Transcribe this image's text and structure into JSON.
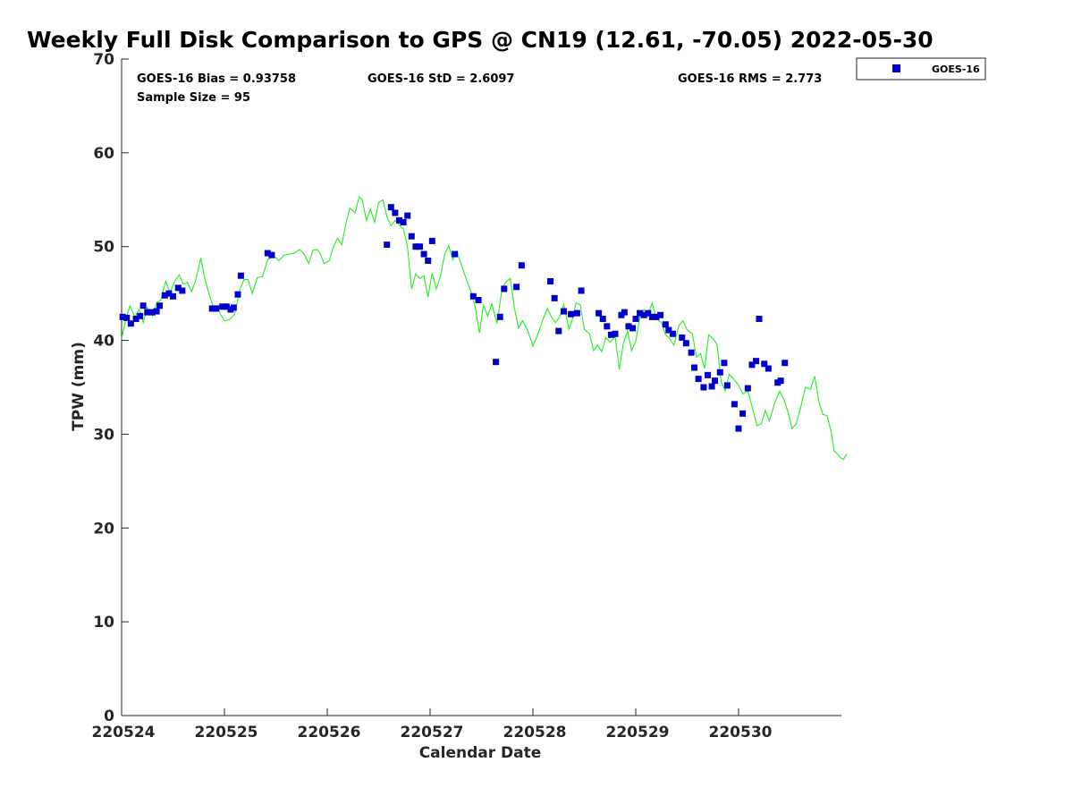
{
  "chart_data": {
    "type": "scatter",
    "title": "Weekly Full Disk Comparison to GPS @ CN19 (12.61, -70.05) 2022-05-30",
    "xlabel": "Calendar Date",
    "ylabel": "TPW (mm)",
    "xlim": [
      0,
      7
    ],
    "ylim": [
      0,
      70
    ],
    "x_ticks": [
      0,
      1,
      2,
      3,
      4,
      5,
      6
    ],
    "x_tick_labels": [
      "220524",
      "220525",
      "220526",
      "220527",
      "220528",
      "220529",
      "220530"
    ],
    "y_ticks": [
      0,
      10,
      20,
      30,
      40,
      50,
      60,
      70
    ],
    "y_tick_labels": [
      "0",
      "10",
      "20",
      "30",
      "40",
      "50",
      "60",
      "70"
    ],
    "x_units": "days since 2022-05-24",
    "grid": false,
    "legend_position": "top-right",
    "legend": [
      {
        "label": "GOES-16",
        "marker": "square",
        "color": "#0000cc"
      }
    ],
    "stats": {
      "bias": "GOES-16 Bias = 0.93758",
      "std": "GOES-16 StD = 2.6097",
      "rms": "GOES-16 RMS = 2.773",
      "sample": "Sample Size = 95"
    },
    "series": [
      {
        "name": "GOES-16",
        "kind": "scatter",
        "color": "#0000cc",
        "points": [
          [
            0.01,
            42.5
          ],
          [
            0.05,
            42.4
          ],
          [
            0.09,
            41.8
          ],
          [
            0.14,
            42.3
          ],
          [
            0.18,
            42.6
          ],
          [
            0.21,
            43.7
          ],
          [
            0.25,
            43.0
          ],
          [
            0.3,
            43.0
          ],
          [
            0.34,
            43.1
          ],
          [
            0.37,
            43.7
          ],
          [
            0.42,
            44.8
          ],
          [
            0.46,
            45.0
          ],
          [
            0.5,
            44.7
          ],
          [
            0.55,
            45.6
          ],
          [
            0.59,
            45.3
          ],
          [
            0.88,
            43.4
          ],
          [
            0.92,
            43.4
          ],
          [
            0.98,
            43.6
          ],
          [
            1.02,
            43.6
          ],
          [
            1.06,
            43.3
          ],
          [
            1.09,
            43.5
          ],
          [
            1.13,
            44.9
          ],
          [
            1.16,
            46.9
          ],
          [
            1.42,
            49.3
          ],
          [
            1.46,
            49.1
          ],
          [
            2.58,
            50.2
          ],
          [
            2.62,
            54.2
          ],
          [
            2.66,
            53.6
          ],
          [
            2.7,
            52.8
          ],
          [
            2.74,
            52.6
          ],
          [
            2.78,
            53.3
          ],
          [
            2.82,
            51.1
          ],
          [
            2.86,
            50.0
          ],
          [
            2.9,
            50.0
          ],
          [
            2.94,
            49.2
          ],
          [
            2.98,
            48.5
          ],
          [
            3.02,
            50.6
          ],
          [
            3.24,
            49.2
          ],
          [
            3.42,
            44.7
          ],
          [
            3.47,
            44.3
          ],
          [
            3.64,
            37.7
          ],
          [
            3.68,
            42.5
          ],
          [
            3.72,
            45.5
          ],
          [
            3.84,
            45.7
          ],
          [
            3.89,
            48.0
          ],
          [
            4.17,
            46.3
          ],
          [
            4.21,
            44.5
          ],
          [
            4.25,
            41.0
          ],
          [
            4.3,
            43.1
          ],
          [
            4.37,
            42.8
          ],
          [
            4.43,
            42.9
          ],
          [
            4.47,
            45.3
          ],
          [
            4.64,
            42.9
          ],
          [
            4.68,
            42.3
          ],
          [
            4.72,
            41.5
          ],
          [
            4.76,
            40.6
          ],
          [
            4.8,
            40.7
          ],
          [
            4.86,
            42.7
          ],
          [
            4.89,
            43.0
          ],
          [
            4.93,
            41.5
          ],
          [
            4.97,
            41.3
          ],
          [
            5.0,
            42.3
          ],
          [
            5.04,
            42.9
          ],
          [
            5.08,
            42.7
          ],
          [
            5.12,
            42.9
          ],
          [
            5.16,
            42.5
          ],
          [
            5.2,
            42.5
          ],
          [
            5.24,
            42.7
          ],
          [
            5.29,
            41.7
          ],
          [
            5.32,
            41.1
          ],
          [
            5.36,
            40.7
          ],
          [
            5.45,
            40.3
          ],
          [
            5.49,
            39.7
          ],
          [
            5.54,
            38.7
          ],
          [
            5.57,
            37.1
          ],
          [
            5.61,
            35.9
          ],
          [
            5.66,
            35.0
          ],
          [
            5.7,
            36.3
          ],
          [
            5.74,
            35.1
          ],
          [
            5.77,
            35.7
          ],
          [
            5.82,
            36.6
          ],
          [
            5.86,
            37.6
          ],
          [
            5.89,
            35.2
          ],
          [
            5.96,
            33.2
          ],
          [
            6.0,
            30.6
          ],
          [
            6.04,
            32.2
          ],
          [
            6.09,
            34.9
          ],
          [
            6.13,
            37.4
          ],
          [
            6.17,
            37.8
          ],
          [
            6.2,
            42.3
          ],
          [
            6.25,
            37.5
          ],
          [
            6.29,
            37.0
          ],
          [
            6.38,
            35.5
          ],
          [
            6.41,
            35.7
          ],
          [
            6.45,
            37.6
          ]
        ]
      },
      {
        "name": "",
        "kind": "line",
        "color": "#22ee22",
        "points": [
          [
            0.0,
            40.2
          ],
          [
            0.04,
            42.2
          ],
          [
            0.08,
            43.7
          ],
          [
            0.13,
            42.5
          ],
          [
            0.17,
            43.3
          ],
          [
            0.21,
            41.9
          ],
          [
            0.25,
            43.5
          ],
          [
            0.3,
            42.6
          ],
          [
            0.34,
            44.0
          ],
          [
            0.38,
            44.3
          ],
          [
            0.43,
            46.3
          ],
          [
            0.47,
            45.1
          ],
          [
            0.52,
            46.4
          ],
          [
            0.56,
            47.0
          ],
          [
            0.6,
            46.0
          ],
          [
            0.64,
            46.2
          ],
          [
            0.68,
            45.2
          ],
          [
            0.72,
            46.4
          ],
          [
            0.77,
            48.8
          ],
          [
            0.81,
            46.5
          ],
          [
            0.86,
            44.6
          ],
          [
            0.9,
            43.3
          ],
          [
            0.94,
            43.2
          ],
          [
            1.0,
            42.1
          ],
          [
            1.05,
            42.2
          ],
          [
            1.1,
            42.8
          ],
          [
            1.15,
            45.4
          ],
          [
            1.19,
            46.5
          ],
          [
            1.23,
            46.5
          ],
          [
            1.27,
            45.0
          ],
          [
            1.32,
            46.7
          ],
          [
            1.37,
            46.8
          ],
          [
            1.42,
            48.6
          ],
          [
            1.48,
            49.0
          ],
          [
            1.53,
            48.5
          ],
          [
            1.58,
            49.1
          ],
          [
            1.63,
            49.2
          ],
          [
            1.68,
            49.3
          ],
          [
            1.73,
            49.7
          ],
          [
            1.77,
            49.3
          ],
          [
            1.82,
            48.2
          ],
          [
            1.86,
            49.6
          ],
          [
            1.9,
            49.7
          ],
          [
            1.93,
            49.3
          ],
          [
            1.97,
            48.2
          ],
          [
            2.02,
            48.5
          ],
          [
            2.06,
            50.0
          ],
          [
            2.1,
            50.9
          ],
          [
            2.14,
            50.2
          ],
          [
            2.19,
            52.9
          ],
          [
            2.22,
            54.1
          ],
          [
            2.27,
            53.6
          ],
          [
            2.31,
            55.3
          ],
          [
            2.34,
            55.0
          ],
          [
            2.38,
            52.8
          ],
          [
            2.42,
            54.0
          ],
          [
            2.46,
            52.6
          ],
          [
            2.5,
            54.7
          ],
          [
            2.54,
            55.0
          ],
          [
            2.58,
            53.2
          ],
          [
            2.62,
            52.2
          ],
          [
            2.66,
            52.8
          ],
          [
            2.7,
            52.3
          ],
          [
            2.74,
            51.9
          ],
          [
            2.78,
            50.0
          ],
          [
            2.82,
            45.5
          ],
          [
            2.86,
            47.1
          ],
          [
            2.9,
            46.6
          ],
          [
            2.94,
            46.9
          ],
          [
            2.98,
            44.6
          ],
          [
            3.02,
            47.2
          ],
          [
            3.06,
            45.5
          ],
          [
            3.1,
            46.8
          ],
          [
            3.14,
            49.1
          ],
          [
            3.18,
            50.1
          ],
          [
            3.22,
            48.6
          ],
          [
            3.26,
            49.5
          ],
          [
            3.3,
            48.2
          ],
          [
            3.34,
            46.9
          ],
          [
            3.4,
            45.1
          ],
          [
            3.44,
            43.5
          ],
          [
            3.48,
            40.8
          ],
          [
            3.52,
            43.8
          ],
          [
            3.56,
            42.6
          ],
          [
            3.6,
            43.9
          ],
          [
            3.65,
            41.8
          ],
          [
            3.7,
            45.5
          ],
          [
            3.74,
            46.3
          ],
          [
            3.78,
            46.6
          ],
          [
            3.82,
            43.5
          ],
          [
            3.86,
            41.3
          ],
          [
            3.9,
            42.1
          ],
          [
            3.95,
            41.0
          ],
          [
            4.0,
            39.4
          ],
          [
            4.05,
            40.7
          ],
          [
            4.1,
            42.3
          ],
          [
            4.14,
            43.4
          ],
          [
            4.18,
            42.5
          ],
          [
            4.22,
            41.9
          ],
          [
            4.26,
            42.5
          ],
          [
            4.3,
            43.8
          ],
          [
            4.35,
            41.2
          ],
          [
            4.38,
            42.1
          ],
          [
            4.42,
            44.0
          ],
          [
            4.46,
            43.8
          ],
          [
            4.5,
            41.2
          ],
          [
            4.55,
            40.7
          ],
          [
            4.59,
            38.9
          ],
          [
            4.63,
            39.5
          ],
          [
            4.67,
            38.8
          ],
          [
            4.71,
            40.3
          ],
          [
            4.75,
            39.8
          ],
          [
            4.8,
            40.4
          ],
          [
            4.84,
            36.9
          ],
          [
            4.88,
            39.7
          ],
          [
            4.92,
            41.0
          ],
          [
            4.96,
            38.9
          ],
          [
            5.0,
            39.9
          ],
          [
            5.04,
            42.5
          ],
          [
            5.08,
            43.3
          ],
          [
            5.12,
            42.8
          ],
          [
            5.16,
            44.0
          ],
          [
            5.2,
            42.3
          ],
          [
            5.25,
            41.9
          ],
          [
            5.29,
            40.6
          ],
          [
            5.33,
            40.2
          ],
          [
            5.37,
            39.5
          ],
          [
            5.42,
            41.6
          ],
          [
            5.46,
            42.1
          ],
          [
            5.5,
            41.1
          ],
          [
            5.55,
            40.7
          ],
          [
            5.59,
            38.2
          ],
          [
            5.63,
            38.6
          ],
          [
            5.67,
            37.0
          ],
          [
            5.71,
            40.6
          ],
          [
            5.75,
            40.2
          ],
          [
            5.79,
            39.6
          ],
          [
            5.83,
            35.6
          ],
          [
            5.87,
            34.6
          ],
          [
            5.91,
            36.4
          ],
          [
            5.95,
            35.9
          ],
          [
            6.0,
            35.2
          ],
          [
            6.04,
            34.3
          ],
          [
            6.09,
            34.6
          ],
          [
            6.13,
            33.0
          ],
          [
            6.18,
            30.9
          ],
          [
            6.22,
            31.1
          ],
          [
            6.26,
            32.5
          ],
          [
            6.3,
            31.4
          ],
          [
            6.35,
            33.3
          ],
          [
            6.4,
            34.6
          ],
          [
            6.44,
            33.7
          ],
          [
            6.48,
            32.4
          ],
          [
            6.52,
            30.6
          ],
          [
            6.56,
            31.1
          ],
          [
            6.6,
            32.7
          ],
          [
            6.65,
            35.0
          ],
          [
            6.7,
            34.8
          ],
          [
            6.74,
            36.2
          ],
          [
            6.78,
            33.5
          ],
          [
            6.82,
            32.1
          ],
          [
            6.86,
            32.0
          ],
          [
            6.9,
            30.3
          ],
          [
            6.93,
            28.2
          ],
          [
            6.96,
            27.9
          ],
          [
            6.99,
            27.5
          ],
          [
            7.02,
            27.3
          ],
          [
            7.05,
            27.9
          ]
        ]
      }
    ]
  }
}
